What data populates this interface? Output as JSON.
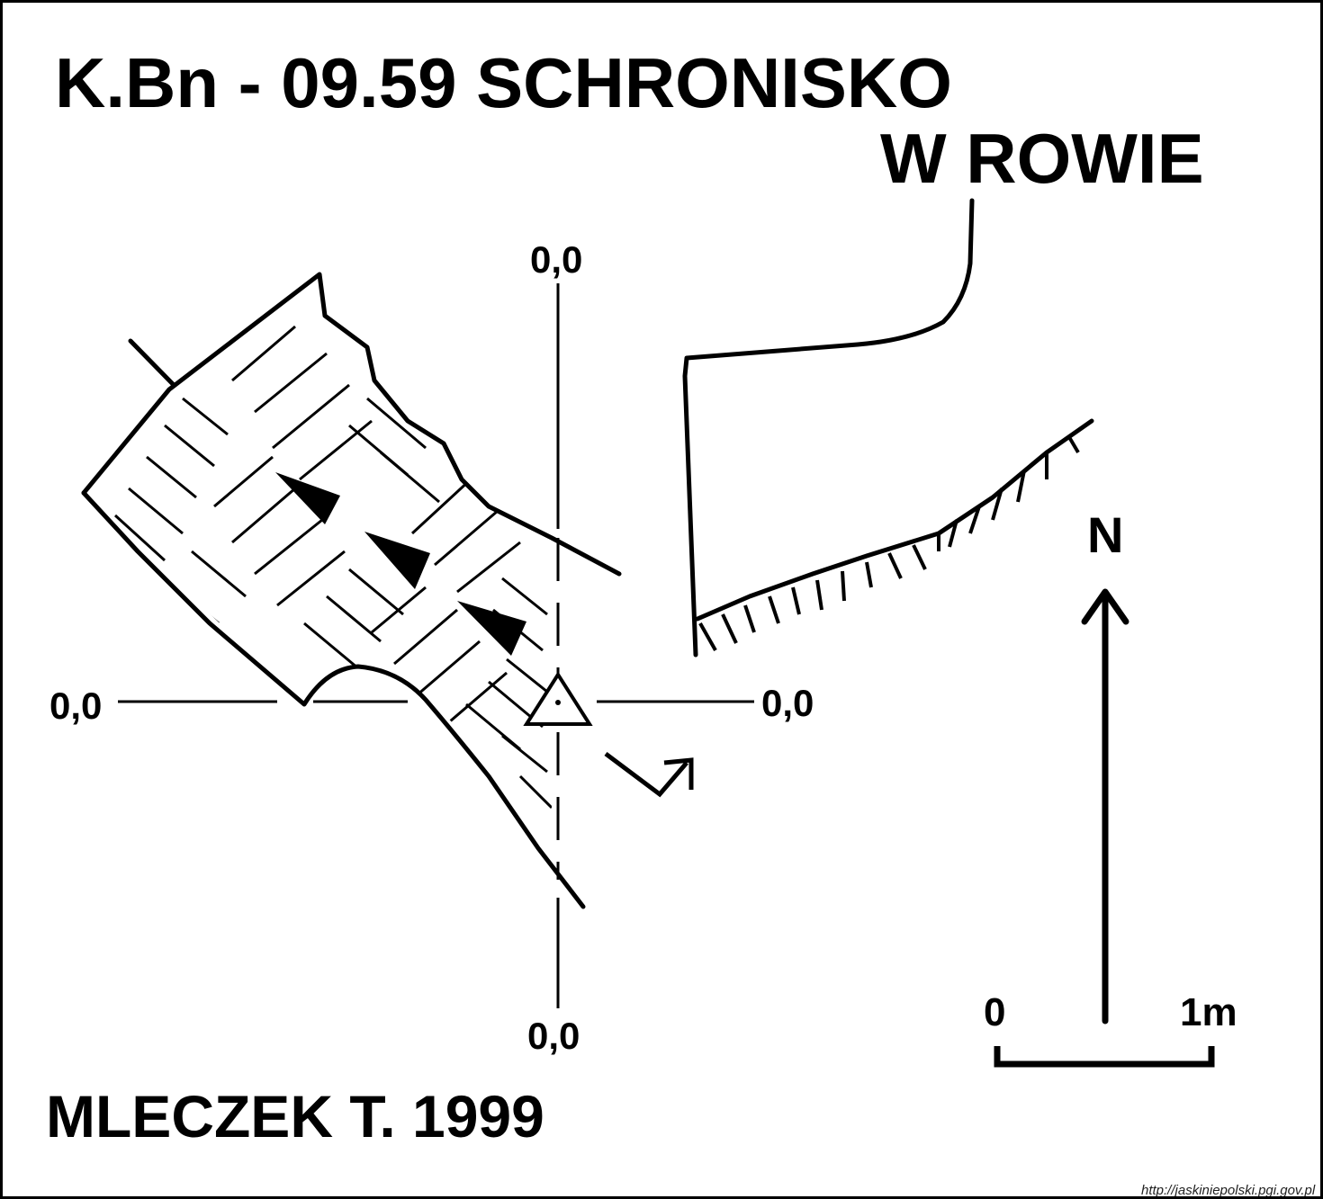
{
  "title": {
    "line1": "K.Bn - 09.59  SCHRONISKO",
    "line2": "W ROWIE"
  },
  "coordinates": {
    "top": "0,0",
    "left": "0,0",
    "right": "0,0",
    "bottom": "0,0"
  },
  "north_label": "N",
  "scale_bar": {
    "start_label": "0",
    "end_label": "1m"
  },
  "author": "MLECZEK T. 1999",
  "credit": "http://jaskiniepolski.pgi.gov.pl",
  "colors": {
    "ink": "#000000",
    "paper": "#ffffff"
  }
}
